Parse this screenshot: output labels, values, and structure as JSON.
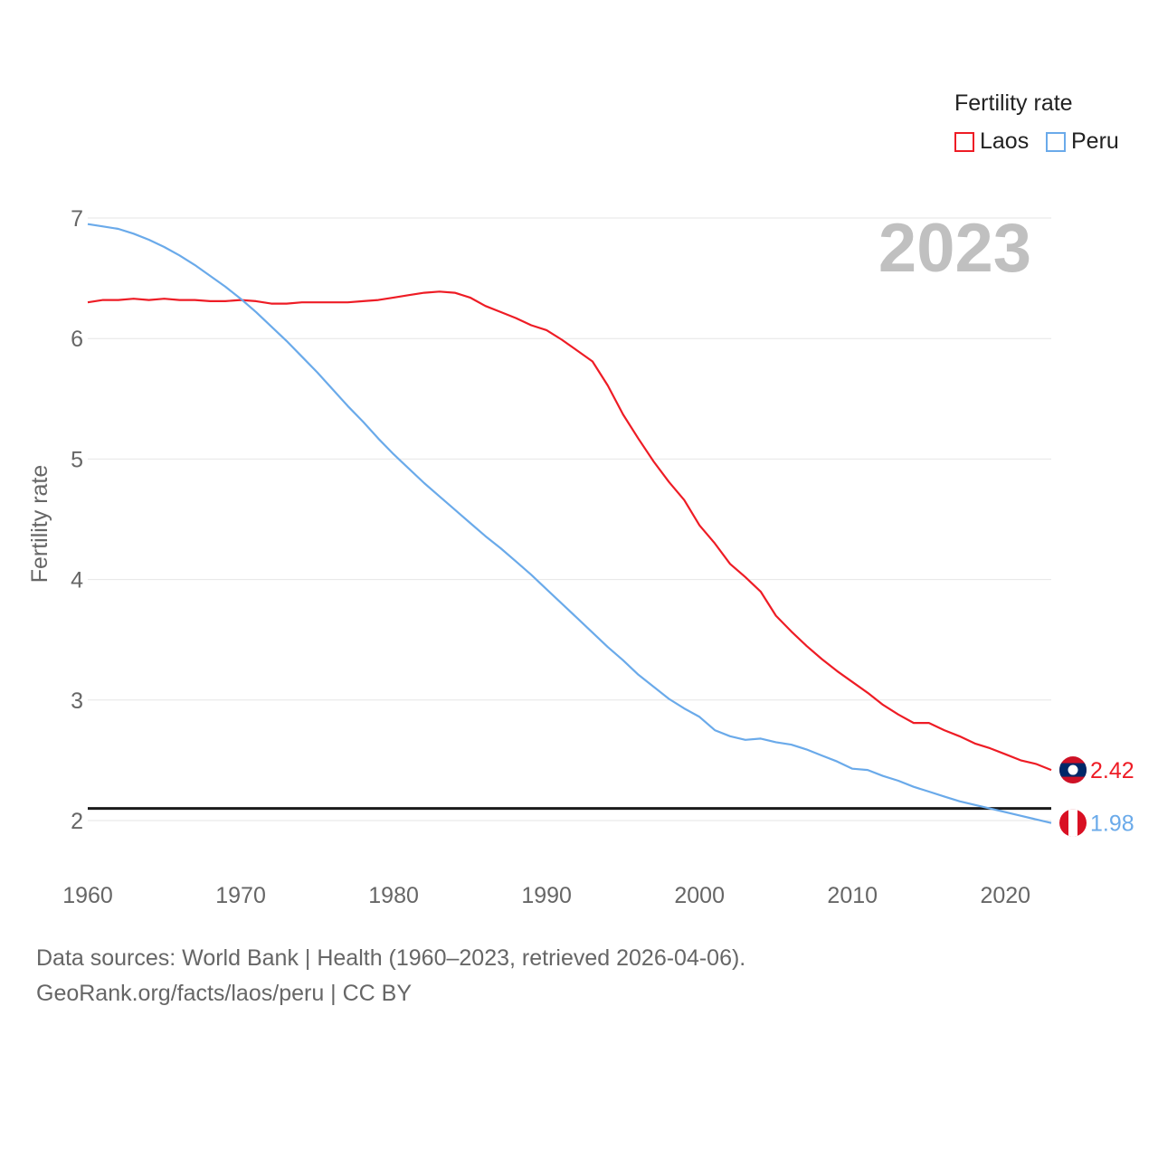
{
  "legend": {
    "title": "Fertility rate",
    "items": [
      {
        "label": "Laos",
        "color": "#ee1c25"
      },
      {
        "label": "Peru",
        "color": "#6aaaea"
      }
    ]
  },
  "footer": {
    "line1": "Data sources: World Bank | Health (1960–2023, retrieved 2026-04-06).",
    "line2": "GeoRank.org/facts/laos/peru | CC BY"
  },
  "chart_data": {
    "type": "line",
    "title": "Fertility rate",
    "year_label": "2023",
    "xlabel": "",
    "ylabel": "Fertility rate",
    "xlim": [
      1960,
      2023
    ],
    "ylim": [
      2,
      7
    ],
    "xticks": [
      1960,
      1970,
      1980,
      1990,
      2000,
      2010,
      2020
    ],
    "yticks": [
      2,
      3,
      4,
      5,
      6,
      7
    ],
    "reference_line": 2.1,
    "x": [
      1960,
      1961,
      1962,
      1963,
      1964,
      1965,
      1966,
      1967,
      1968,
      1969,
      1970,
      1971,
      1972,
      1973,
      1974,
      1975,
      1976,
      1977,
      1978,
      1979,
      1980,
      1981,
      1982,
      1983,
      1984,
      1985,
      1986,
      1987,
      1988,
      1989,
      1990,
      1991,
      1992,
      1993,
      1994,
      1995,
      1996,
      1997,
      1998,
      1999,
      2000,
      2001,
      2002,
      2003,
      2004,
      2005,
      2006,
      2007,
      2008,
      2009,
      2010,
      2011,
      2012,
      2013,
      2014,
      2015,
      2016,
      2017,
      2018,
      2019,
      2020,
      2021,
      2022,
      2023
    ],
    "series": [
      {
        "name": "Laos",
        "color": "#ee1c25",
        "end_label": "2.42",
        "values": [
          6.3,
          6.32,
          6.32,
          6.33,
          6.32,
          6.33,
          6.32,
          6.32,
          6.31,
          6.31,
          6.32,
          6.31,
          6.29,
          6.29,
          6.3,
          6.3,
          6.3,
          6.3,
          6.31,
          6.32,
          6.34,
          6.36,
          6.38,
          6.39,
          6.38,
          6.34,
          6.27,
          6.22,
          6.17,
          6.11,
          6.07,
          5.99,
          5.9,
          5.81,
          5.61,
          5.37,
          5.17,
          4.98,
          4.81,
          4.66,
          4.45,
          4.3,
          4.13,
          4.02,
          3.9,
          3.7,
          3.57,
          3.45,
          3.34,
          3.24,
          3.15,
          3.06,
          2.96,
          2.88,
          2.81,
          2.81,
          2.75,
          2.7,
          2.64,
          2.6,
          2.55,
          2.5,
          2.47,
          2.42
        ]
      },
      {
        "name": "Peru",
        "color": "#6aaaea",
        "end_label": "1.98",
        "values": [
          6.95,
          6.93,
          6.91,
          6.87,
          6.82,
          6.76,
          6.69,
          6.61,
          6.52,
          6.43,
          6.33,
          6.22,
          6.1,
          5.98,
          5.85,
          5.72,
          5.58,
          5.44,
          5.31,
          5.17,
          5.04,
          4.92,
          4.8,
          4.69,
          4.58,
          4.47,
          4.36,
          4.26,
          4.15,
          4.04,
          3.92,
          3.8,
          3.68,
          3.56,
          3.44,
          3.33,
          3.21,
          3.11,
          3.01,
          2.93,
          2.86,
          2.75,
          2.7,
          2.67,
          2.68,
          2.65,
          2.63,
          2.59,
          2.54,
          2.49,
          2.43,
          2.42,
          2.37,
          2.33,
          2.28,
          2.24,
          2.2,
          2.16,
          2.13,
          2.1,
          2.07,
          2.04,
          2.01,
          1.98
        ]
      }
    ]
  }
}
